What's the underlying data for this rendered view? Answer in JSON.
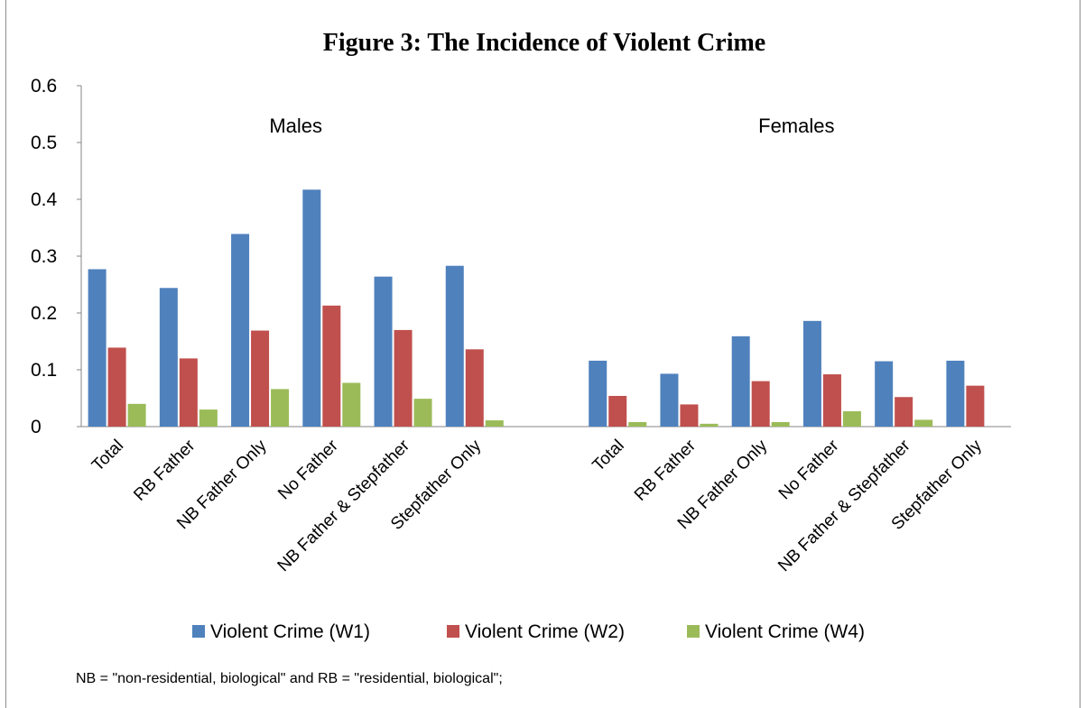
{
  "chart_data": {
    "type": "bar",
    "title": "Figure 3:  The Incidence of Violent Crime",
    "ylim": [
      0,
      0.6
    ],
    "yticks": [
      "0",
      "0.1",
      "0.2",
      "0.3",
      "0.4",
      "0.5",
      "0.6"
    ],
    "grid": false,
    "legend_position": "bottom",
    "groups": [
      {
        "name": "Males",
        "categories": [
          "Total",
          "RB Father",
          "NB Father Only",
          "No Father",
          "NB Father & Stepfather",
          "Stepfather Only"
        ]
      },
      {
        "name": "Females",
        "categories": [
          "Total",
          "RB Father",
          "NB Father Only",
          "No Father",
          "NB Father & Stepfather",
          "Stepfather Only"
        ]
      }
    ],
    "series": [
      {
        "name": "Violent Crime (W1)",
        "color": "#4f81bd",
        "values": [
          0.277,
          0.244,
          0.339,
          0.417,
          0.264,
          0.283,
          0.116,
          0.093,
          0.159,
          0.186,
          0.115,
          0.116
        ]
      },
      {
        "name": "Violent Crime (W2)",
        "color": "#c0504d",
        "values": [
          0.139,
          0.12,
          0.169,
          0.213,
          0.17,
          0.136,
          0.054,
          0.039,
          0.08,
          0.092,
          0.052,
          0.072
        ]
      },
      {
        "name": "Violent Crime (W4)",
        "color": "#9bbb59",
        "values": [
          0.04,
          0.03,
          0.066,
          0.077,
          0.049,
          0.011,
          0.008,
          0.005,
          0.008,
          0.027,
          0.012,
          null
        ]
      }
    ]
  },
  "footnote": "NB = \"non-residential, biological\" and RB = \"residential, biological\";"
}
